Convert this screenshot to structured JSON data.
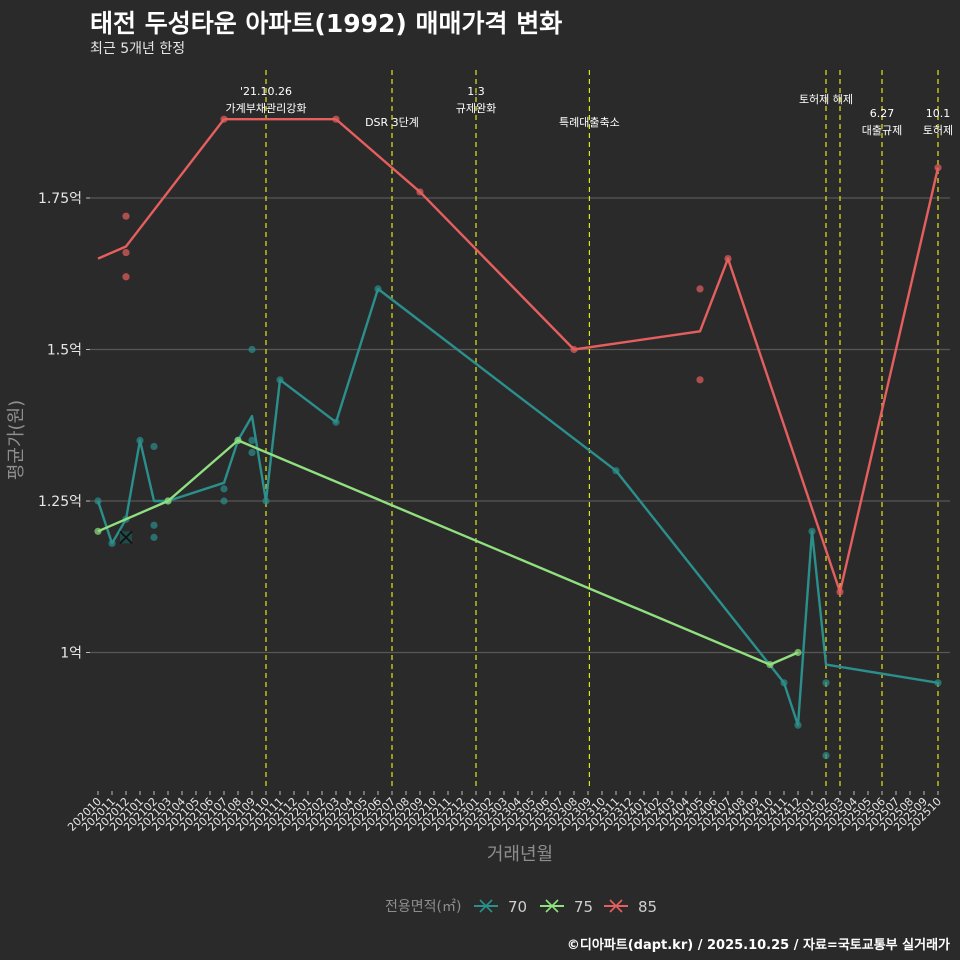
{
  "title": "태전 두성타운 아파트(1992) 매매가격 변화",
  "subtitle": "최근 5개년 한정",
  "caption": "©디아파트(dapt.kr) / 2025.10.25 / 자료=국토교통부 실거래가",
  "colors": {
    "s70": "#2b8f8c",
    "s75": "#90e07f",
    "s85": "#e55f5f",
    "policy": "#e3e31c",
    "grid": "#575757"
  },
  "chart_data": {
    "type": "line",
    "xlabel": "거래년월",
    "ylabel": "평균가(원)",
    "ylim": [
      0.78,
      1.92
    ],
    "yticks": [
      1.0,
      1.25,
      1.5,
      1.75
    ],
    "ytick_labels": [
      "1억",
      "1.25억",
      "1.5억",
      "1.75억"
    ],
    "categories": [
      "202010",
      "202011",
      "202012",
      "202101",
      "202102",
      "202103",
      "202104",
      "202105",
      "202106",
      "202107",
      "202108",
      "202109",
      "202110",
      "202111",
      "202112",
      "202201",
      "202202",
      "202203",
      "202204",
      "202205",
      "202206",
      "202207",
      "202208",
      "202209",
      "202210",
      "202211",
      "202212",
      "202301",
      "202302",
      "202303",
      "202304",
      "202305",
      "202306",
      "202307",
      "202308",
      "202309",
      "202310",
      "202311",
      "202312",
      "202401",
      "202402",
      "202403",
      "202404",
      "202405",
      "202406",
      "202407",
      "202408",
      "202409",
      "202410",
      "202411",
      "202412",
      "202501",
      "202502",
      "202503",
      "202504",
      "202505",
      "202506",
      "202507",
      "202508",
      "202509",
      "202510"
    ],
    "legend": {
      "title": "전용면적(㎡)",
      "position": "bottom",
      "entries": [
        "70",
        "75",
        "85"
      ]
    },
    "series": [
      {
        "name": "70",
        "line": [
          [
            "202010",
            1.25
          ],
          [
            "202011",
            1.18
          ],
          [
            "202012",
            1.22
          ],
          [
            "202101",
            1.35
          ],
          [
            "202102",
            1.25
          ],
          [
            "202103",
            1.25
          ],
          [
            "202107",
            1.28
          ],
          [
            "202108",
            1.35
          ],
          [
            "202109",
            1.39
          ],
          [
            "202110",
            1.25
          ],
          [
            "202111",
            1.45
          ],
          [
            "202203",
            1.38
          ],
          [
            "202206",
            1.6
          ],
          [
            "202311",
            1.3
          ],
          [
            "202411",
            0.95
          ],
          [
            "202412",
            0.88
          ],
          [
            "202501",
            1.2
          ],
          [
            "202502",
            0.98
          ],
          [
            "202510",
            0.95
          ]
        ],
        "points": [
          [
            "202010",
            1.25
          ],
          [
            "202011",
            1.18
          ],
          [
            "202012",
            1.22
          ],
          [
            "202101",
            1.35
          ],
          [
            "202102",
            1.34
          ],
          [
            "202102",
            1.21
          ],
          [
            "202102",
            1.19
          ],
          [
            "202103",
            1.25
          ],
          [
            "202107",
            1.27
          ],
          [
            "202107",
            1.25
          ],
          [
            "202108",
            1.35
          ],
          [
            "202109",
            1.5
          ],
          [
            "202109",
            1.35
          ],
          [
            "202109",
            1.33
          ],
          [
            "202110",
            1.25
          ],
          [
            "202111",
            1.45
          ],
          [
            "202203",
            1.38
          ],
          [
            "202206",
            1.6
          ],
          [
            "202311",
            1.3
          ],
          [
            "202411",
            0.95
          ],
          [
            "202412",
            0.88
          ],
          [
            "202501",
            1.2
          ],
          [
            "202502",
            0.95
          ],
          [
            "202502",
            0.83
          ],
          [
            "202510",
            0.95
          ]
        ]
      },
      {
        "name": "75",
        "line": [
          [
            "202010",
            1.2
          ],
          [
            "202103",
            1.25
          ],
          [
            "202108",
            1.35
          ],
          [
            "202410",
            0.98
          ],
          [
            "202412",
            1.0
          ]
        ],
        "points": [
          [
            "202010",
            1.2
          ],
          [
            "202103",
            1.25
          ],
          [
            "202108",
            1.35
          ],
          [
            "202410",
            0.98
          ],
          [
            "202412",
            1.0
          ]
        ]
      },
      {
        "name": "85",
        "line": [
          [
            "202010",
            1.65
          ],
          [
            "202012",
            1.67
          ],
          [
            "202107",
            1.88
          ],
          [
            "202203",
            1.88
          ],
          [
            "202209",
            1.76
          ],
          [
            "202308",
            1.5
          ],
          [
            "202405",
            1.53
          ],
          [
            "202407",
            1.65
          ],
          [
            "202503",
            1.1
          ],
          [
            "202510",
            1.8
          ]
        ],
        "points": [
          [
            "202012",
            1.72
          ],
          [
            "202012",
            1.66
          ],
          [
            "202012",
            1.62
          ],
          [
            "202107",
            1.88
          ],
          [
            "202203",
            1.88
          ],
          [
            "202209",
            1.76
          ],
          [
            "202308",
            1.5
          ],
          [
            "202405",
            1.6
          ],
          [
            "202405",
            1.45
          ],
          [
            "202407",
            1.65
          ],
          [
            "202503",
            1.1
          ],
          [
            "202510",
            1.8
          ]
        ]
      }
    ],
    "marker": {
      "category": "202012",
      "value": 1.19,
      "symbol": "x"
    },
    "policy_lines": [
      {
        "x": 12.0,
        "lines": [
          "'21.10.26",
          "가계부채관리강화"
        ],
        "row": "high"
      },
      {
        "x": 21.0,
        "lines": [
          "DSR 3단계"
        ],
        "row": "low"
      },
      {
        "x": 27.0,
        "lines": [
          "1.3",
          "규제완화"
        ],
        "row": "high"
      },
      {
        "x": 35.1,
        "lines": [
          "특례대출축소"
        ],
        "row": "low"
      },
      {
        "x": 52.0,
        "lines": [
          "토허제 해제"
        ],
        "row": "mid"
      },
      {
        "x": 53.0,
        "lines": [],
        "row": "none"
      },
      {
        "x": 56.0,
        "lines": [
          "6.27",
          "대출규제"
        ],
        "row": "lowtwo"
      },
      {
        "x": 60.0,
        "lines": [
          "10.1",
          "토허제"
        ],
        "row": "lowtwo"
      }
    ]
  }
}
